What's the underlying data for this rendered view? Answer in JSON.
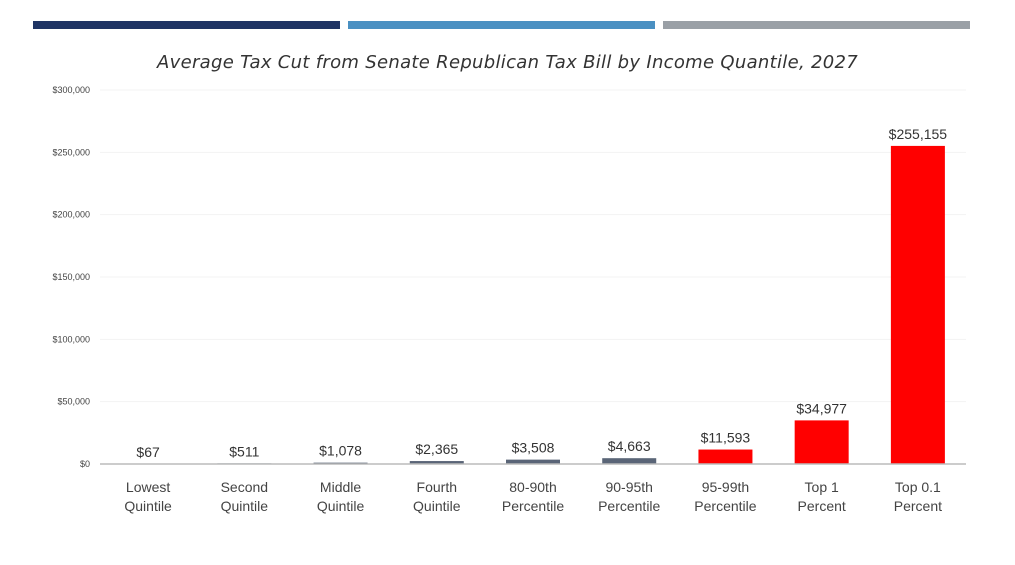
{
  "header_stripes": [
    "#1f3464",
    "#4a90c2",
    "#9aa0a6"
  ],
  "colors": {
    "normal_bar": "#5a6577",
    "highlight_bar": "#ff0000",
    "axis": "#bbbbbb",
    "grid": "#f3f3f3"
  },
  "chart_data": {
    "type": "bar",
    "title": "Average Tax Cut from Senate Republican Tax Bill by Income Quantile, 2027",
    "xlabel": "",
    "ylabel": "",
    "ylim": [
      0,
      300000
    ],
    "yticks": [
      0,
      50000,
      100000,
      150000,
      200000,
      250000,
      300000
    ],
    "ytick_labels": [
      "$0",
      "$50,000",
      "$100,000",
      "$150,000",
      "$200,000",
      "$250,000",
      "$300,000"
    ],
    "categories": [
      [
        "Lowest",
        "Quintile"
      ],
      [
        "Second",
        "Quintile"
      ],
      [
        "Middle",
        "Quintile"
      ],
      [
        "Fourth",
        "Quintile"
      ],
      [
        "80-90th",
        "Percentile"
      ],
      [
        "90-95th",
        "Percentile"
      ],
      [
        "95-99th",
        "Percentile"
      ],
      [
        "Top 1",
        "Percent"
      ],
      [
        "Top 0.1",
        "Percent"
      ]
    ],
    "values": [
      67,
      511,
      1078,
      2365,
      3508,
      4663,
      11593,
      34977,
      255155
    ],
    "data_labels": [
      "$67",
      "$511",
      "$1,078",
      "$2,365",
      "$3,508",
      "$4,663",
      "$11,593",
      "$34,977",
      "$255,155"
    ],
    "highlighted": [
      false,
      false,
      false,
      false,
      false,
      false,
      true,
      true,
      true
    ],
    "grid": true,
    "legend": "none"
  }
}
